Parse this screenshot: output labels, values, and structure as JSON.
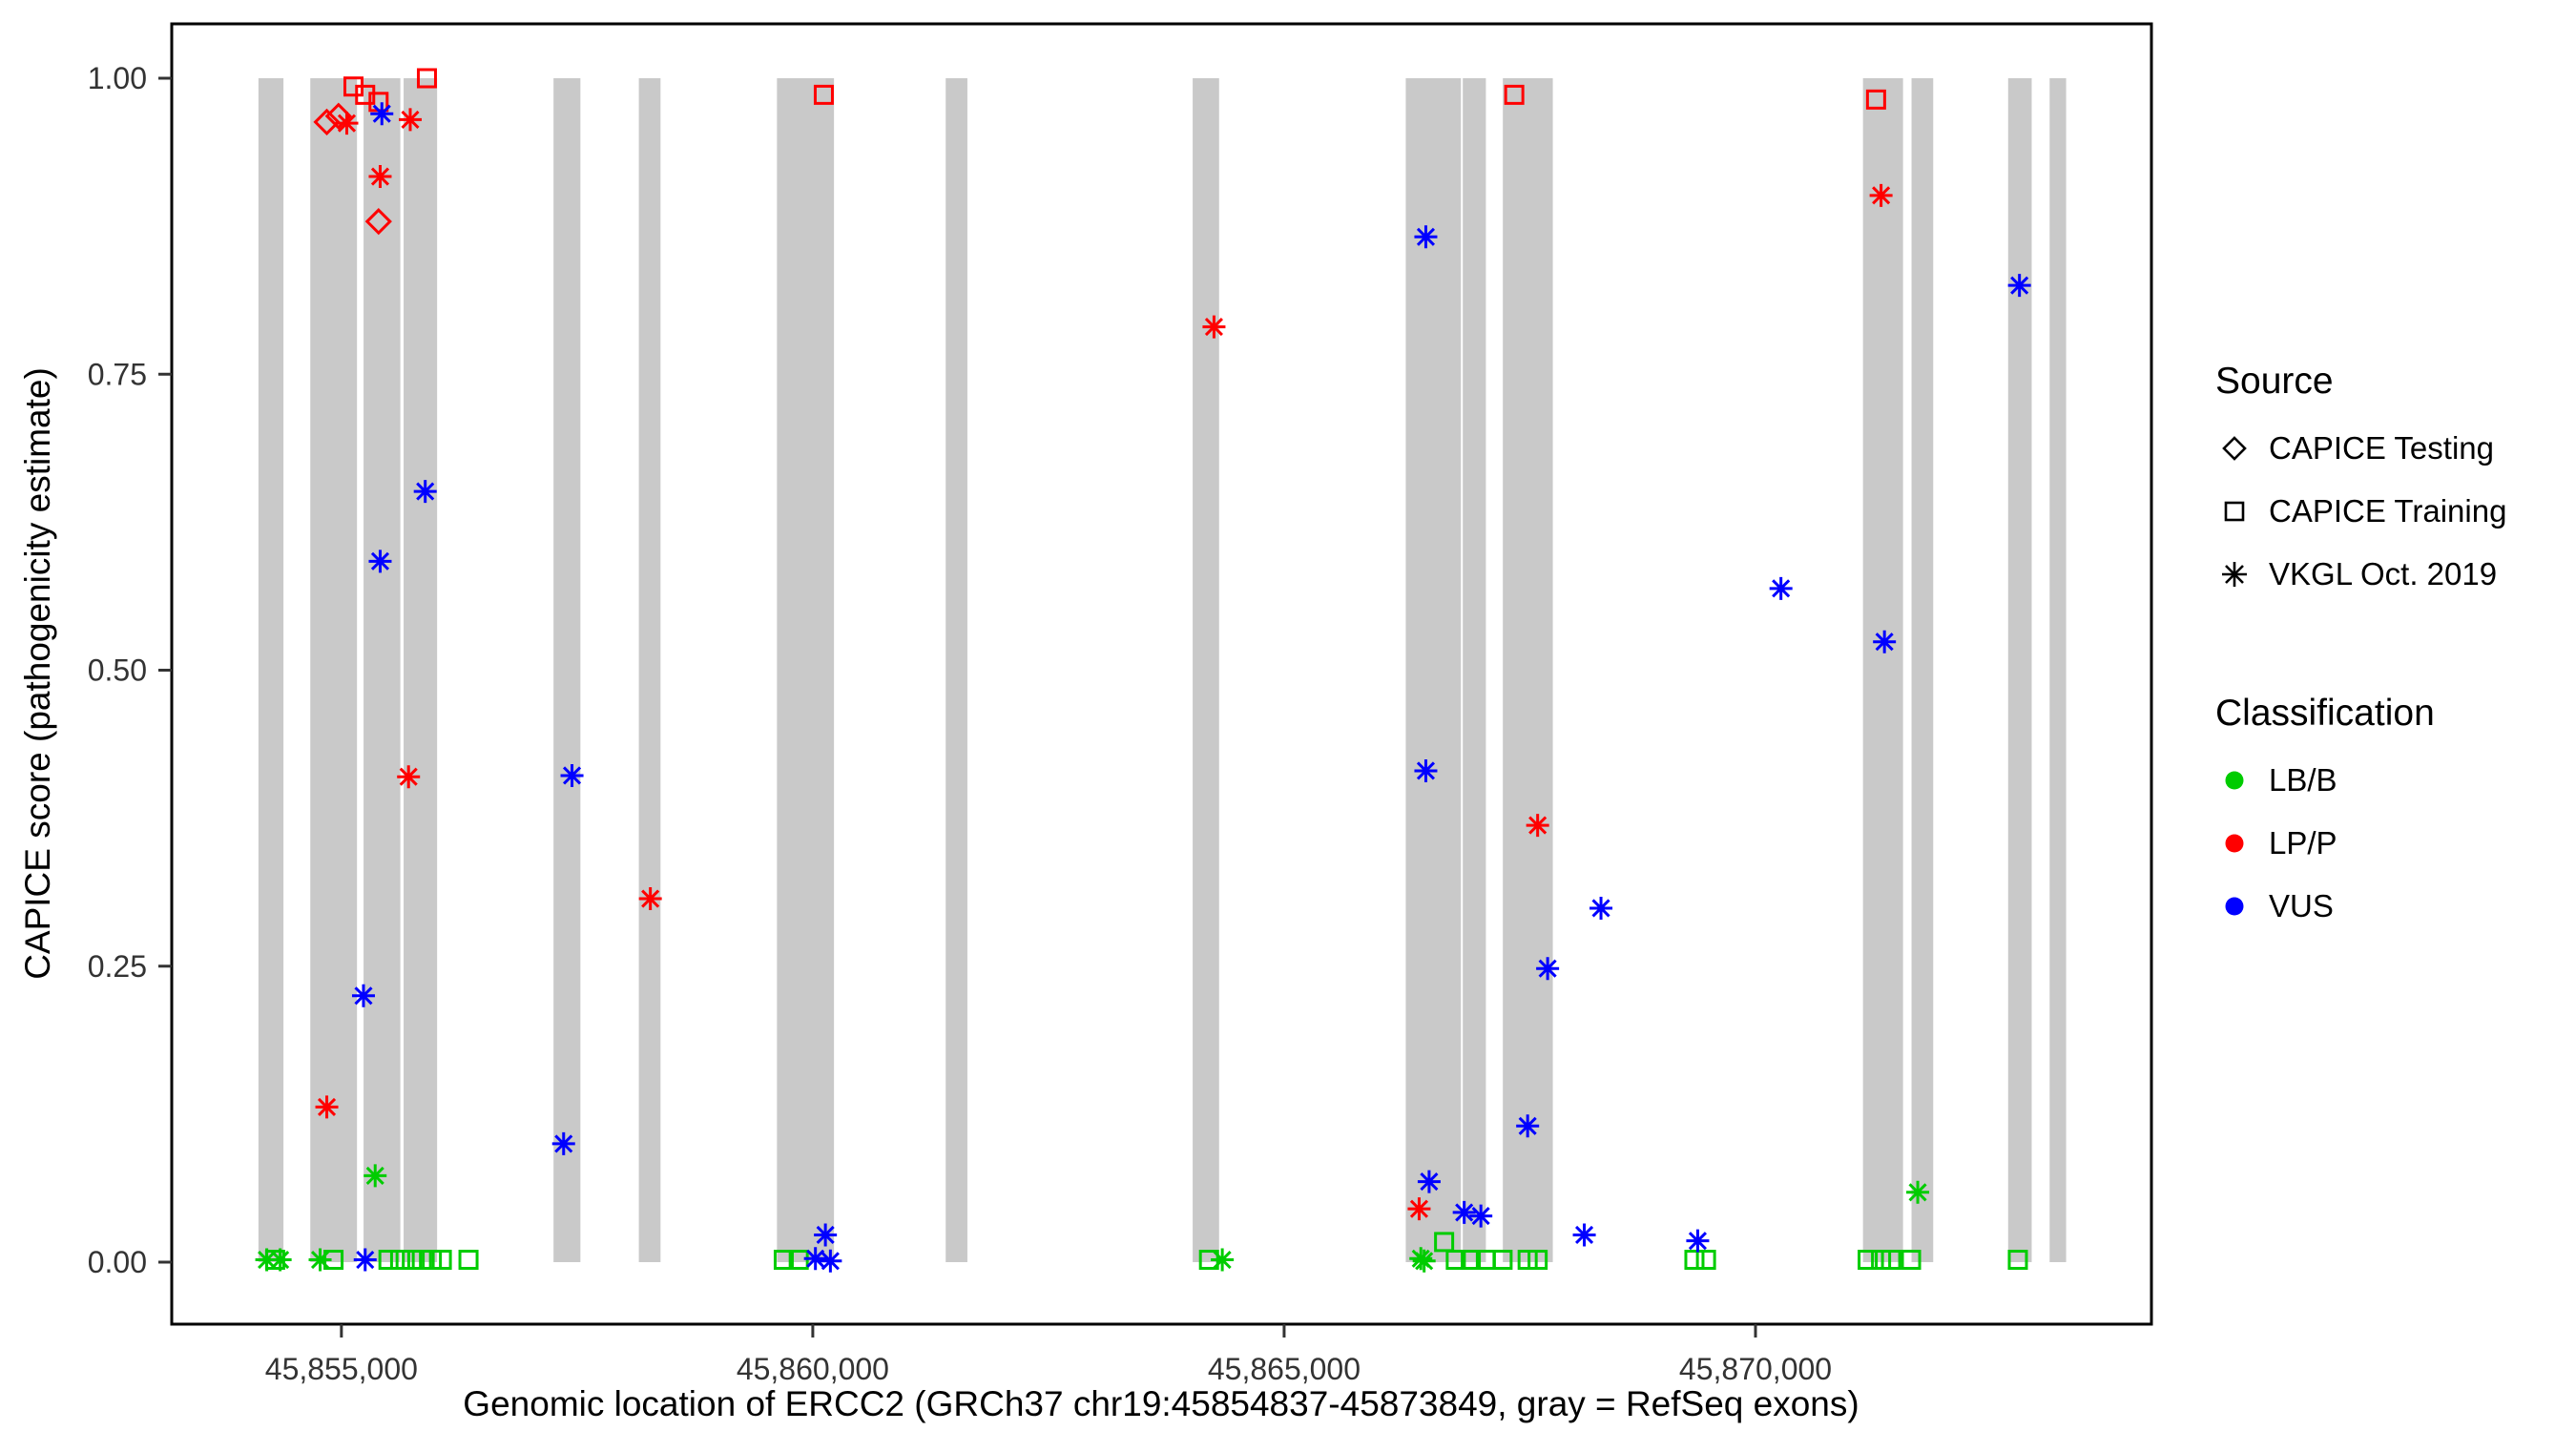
{
  "legend": {
    "source": {
      "title": "Source",
      "items": [
        {
          "key": "testing",
          "label": "CAPICE Testing"
        },
        {
          "key": "training",
          "label": "CAPICE Training"
        },
        {
          "key": "vkgl",
          "label": "VKGL Oct. 2019"
        }
      ]
    },
    "classification": {
      "title": "Classification",
      "items": [
        {
          "key": "LB/B",
          "label": "LB/B",
          "color": "#00CC00"
        },
        {
          "key": "LP/P",
          "label": "LP/P",
          "color": "#FF0000"
        },
        {
          "key": "VUS",
          "label": "VUS",
          "color": "#0000FF"
        }
      ]
    }
  },
  "chart_data": {
    "type": "scatter",
    "title": "",
    "xlabel": "Genomic location of ERCC2 (GRCh37 chr19:45854837-45873849, gray = RefSeq exons)",
    "ylabel": "CAPICE score (pathogenicity estimate)",
    "xlim": [
      45853200,
      45874200
    ],
    "ylim": [
      0,
      1
    ],
    "grid": false,
    "legend_position": "right",
    "x_ticks": [
      {
        "value": 45855000,
        "label": "45,855,000"
      },
      {
        "value": 45860000,
        "label": "45,860,000"
      },
      {
        "value": 45865000,
        "label": "45,865,000"
      },
      {
        "value": 45870000,
        "label": "45,870,000"
      }
    ],
    "y_ticks": [
      {
        "value": 0.0,
        "label": "0.00"
      },
      {
        "value": 0.25,
        "label": "0.25"
      },
      {
        "value": 0.5,
        "label": "0.50"
      },
      {
        "value": 0.75,
        "label": "0.75"
      },
      {
        "value": 1.0,
        "label": "1.00"
      }
    ],
    "exon_color": "#C9C9C9",
    "colors": {
      "LB/B": "#00CC00",
      "LP/P": "#FF0000",
      "VUS": "#0000FF"
    },
    "exons": [
      [
        45854120,
        45854385
      ],
      [
        45854670,
        45855165
      ],
      [
        45855235,
        45855625
      ],
      [
        45855660,
        45856015
      ],
      [
        45857250,
        45857535
      ],
      [
        45858155,
        45858385
      ],
      [
        45859620,
        45860225
      ],
      [
        45861410,
        45861640
      ],
      [
        45864030,
        45864310
      ],
      [
        45866290,
        45866875
      ],
      [
        45866895,
        45867140
      ],
      [
        45867320,
        45867850
      ],
      [
        45871140,
        45871565
      ],
      [
        45871655,
        45871885
      ],
      [
        45872680,
        45872930
      ],
      [
        45873120,
        45873295
      ]
    ],
    "points": [
      {
        "x": 45854845,
        "y": 0.963,
        "source": "testing",
        "cls": "LP/P"
      },
      {
        "x": 45854969,
        "y": 0.968,
        "source": "testing",
        "cls": "LP/P"
      },
      {
        "x": 45855394,
        "y": 0.879,
        "source": "testing",
        "cls": "LP/P"
      },
      {
        "x": 45855128,
        "y": 0.993,
        "source": "training",
        "cls": "LP/P"
      },
      {
        "x": 45855252,
        "y": 0.986,
        "source": "training",
        "cls": "LP/P"
      },
      {
        "x": 45855394,
        "y": 0.98,
        "source": "training",
        "cls": "LP/P"
      },
      {
        "x": 45855907,
        "y": 1.0,
        "source": "training",
        "cls": "LP/P"
      },
      {
        "x": 45860117,
        "y": 0.986,
        "source": "training",
        "cls": "LP/P"
      },
      {
        "x": 45867441,
        "y": 0.986,
        "source": "training",
        "cls": "LP/P"
      },
      {
        "x": 45871279,
        "y": 0.982,
        "source": "training",
        "cls": "LP/P"
      },
      {
        "x": 45854297,
        "y": 0.002,
        "source": "training",
        "cls": "LB/B"
      },
      {
        "x": 45854916,
        "y": 0.002,
        "source": "training",
        "cls": "LB/B"
      },
      {
        "x": 45855499,
        "y": 0.002,
        "source": "training",
        "cls": "LB/B"
      },
      {
        "x": 45855623,
        "y": 0.002,
        "source": "training",
        "cls": "LB/B"
      },
      {
        "x": 45855747,
        "y": 0.002,
        "source": "training",
        "cls": "LB/B"
      },
      {
        "x": 45855853,
        "y": 0.002,
        "source": "training",
        "cls": "LB/B"
      },
      {
        "x": 45855959,
        "y": 0.002,
        "source": "training",
        "cls": "LB/B"
      },
      {
        "x": 45856065,
        "y": 0.002,
        "source": "training",
        "cls": "LB/B"
      },
      {
        "x": 45856348,
        "y": 0.002,
        "source": "training",
        "cls": "LB/B"
      },
      {
        "x": 45859692,
        "y": 0.002,
        "source": "training",
        "cls": "LB/B"
      },
      {
        "x": 45859851,
        "y": 0.002,
        "source": "training",
        "cls": "LB/B"
      },
      {
        "x": 45864203,
        "y": 0.002,
        "source": "training",
        "cls": "LB/B"
      },
      {
        "x": 45866697,
        "y": 0.017,
        "source": "training",
        "cls": "LB/B"
      },
      {
        "x": 45866821,
        "y": 0.002,
        "source": "training",
        "cls": "LB/B"
      },
      {
        "x": 45866980,
        "y": 0.002,
        "source": "training",
        "cls": "LB/B"
      },
      {
        "x": 45867140,
        "y": 0.002,
        "source": "training",
        "cls": "LB/B"
      },
      {
        "x": 45867317,
        "y": 0.002,
        "source": "training",
        "cls": "LB/B"
      },
      {
        "x": 45867583,
        "y": 0.002,
        "source": "training",
        "cls": "LB/B"
      },
      {
        "x": 45867689,
        "y": 0.002,
        "source": "training",
        "cls": "LB/B"
      },
      {
        "x": 45869352,
        "y": 0.002,
        "source": "training",
        "cls": "LB/B"
      },
      {
        "x": 45869475,
        "y": 0.002,
        "source": "training",
        "cls": "LB/B"
      },
      {
        "x": 45871190,
        "y": 0.002,
        "source": "training",
        "cls": "LB/B"
      },
      {
        "x": 45871332,
        "y": 0.002,
        "source": "training",
        "cls": "LB/B"
      },
      {
        "x": 45871438,
        "y": 0.002,
        "source": "training",
        "cls": "LB/B"
      },
      {
        "x": 45871650,
        "y": 0.002,
        "source": "training",
        "cls": "LB/B"
      },
      {
        "x": 45872783,
        "y": 0.002,
        "source": "training",
        "cls": "LB/B"
      },
      {
        "x": 45855057,
        "y": 0.962,
        "source": "vkgl",
        "cls": "LP/P"
      },
      {
        "x": 45855730,
        "y": 0.965,
        "source": "vkgl",
        "cls": "LP/P"
      },
      {
        "x": 45855411,
        "y": 0.917,
        "source": "vkgl",
        "cls": "LP/P"
      },
      {
        "x": 45871332,
        "y": 0.901,
        "source": "vkgl",
        "cls": "LP/P"
      },
      {
        "x": 45864256,
        "y": 0.79,
        "source": "vkgl",
        "cls": "LP/P"
      },
      {
        "x": 45855712,
        "y": 0.41,
        "source": "vkgl",
        "cls": "LP/P"
      },
      {
        "x": 45867689,
        "y": 0.369,
        "source": "vkgl",
        "cls": "LP/P"
      },
      {
        "x": 45858277,
        "y": 0.307,
        "source": "vkgl",
        "cls": "LP/P"
      },
      {
        "x": 45854845,
        "y": 0.131,
        "source": "vkgl",
        "cls": "LP/P"
      },
      {
        "x": 45866432,
        "y": 0.045,
        "source": "vkgl",
        "cls": "LP/P"
      },
      {
        "x": 45855429,
        "y": 0.97,
        "source": "vkgl",
        "cls": "VUS"
      },
      {
        "x": 45866503,
        "y": 0.866,
        "source": "vkgl",
        "cls": "VUS"
      },
      {
        "x": 45872800,
        "y": 0.825,
        "source": "vkgl",
        "cls": "VUS"
      },
      {
        "x": 45855889,
        "y": 0.651,
        "source": "vkgl",
        "cls": "VUS"
      },
      {
        "x": 45855411,
        "y": 0.592,
        "source": "vkgl",
        "cls": "VUS"
      },
      {
        "x": 45870270,
        "y": 0.569,
        "source": "vkgl",
        "cls": "VUS"
      },
      {
        "x": 45871368,
        "y": 0.524,
        "source": "vkgl",
        "cls": "VUS"
      },
      {
        "x": 45866503,
        "y": 0.415,
        "source": "vkgl",
        "cls": "VUS"
      },
      {
        "x": 45857446,
        "y": 0.411,
        "source": "vkgl",
        "cls": "VUS"
      },
      {
        "x": 45868361,
        "y": 0.299,
        "source": "vkgl",
        "cls": "VUS"
      },
      {
        "x": 45867795,
        "y": 0.248,
        "source": "vkgl",
        "cls": "VUS"
      },
      {
        "x": 45855234,
        "y": 0.225,
        "source": "vkgl",
        "cls": "VUS"
      },
      {
        "x": 45867583,
        "y": 0.115,
        "source": "vkgl",
        "cls": "VUS"
      },
      {
        "x": 45857357,
        "y": 0.1,
        "source": "vkgl",
        "cls": "VUS"
      },
      {
        "x": 45866538,
        "y": 0.068,
        "source": "vkgl",
        "cls": "VUS"
      },
      {
        "x": 45866910,
        "y": 0.042,
        "source": "vkgl",
        "cls": "VUS"
      },
      {
        "x": 45867087,
        "y": 0.039,
        "source": "vkgl",
        "cls": "VUS"
      },
      {
        "x": 45868184,
        "y": 0.023,
        "source": "vkgl",
        "cls": "VUS"
      },
      {
        "x": 45860134,
        "y": 0.023,
        "source": "vkgl",
        "cls": "VUS"
      },
      {
        "x": 45869387,
        "y": 0.018,
        "source": "vkgl",
        "cls": "VUS"
      },
      {
        "x": 45855252,
        "y": 0.002,
        "source": "vkgl",
        "cls": "VUS"
      },
      {
        "x": 45860028,
        "y": 0.003,
        "source": "vkgl",
        "cls": "VUS"
      },
      {
        "x": 45860187,
        "y": 0.001,
        "source": "vkgl",
        "cls": "VUS"
      },
      {
        "x": 45855358,
        "y": 0.073,
        "source": "vkgl",
        "cls": "LB/B"
      },
      {
        "x": 45871721,
        "y": 0.059,
        "source": "vkgl",
        "cls": "LB/B"
      },
      {
        "x": 45854208,
        "y": 0.002,
        "source": "vkgl",
        "cls": "LB/B"
      },
      {
        "x": 45854350,
        "y": 0.002,
        "source": "vkgl",
        "cls": "LB/B"
      },
      {
        "x": 45854774,
        "y": 0.002,
        "source": "vkgl",
        "cls": "LB/B"
      },
      {
        "x": 45864344,
        "y": 0.002,
        "source": "vkgl",
        "cls": "LB/B"
      },
      {
        "x": 45866450,
        "y": 0.003,
        "source": "vkgl",
        "cls": "LB/B"
      },
      {
        "x": 45866485,
        "y": 0.001,
        "source": "vkgl",
        "cls": "LB/B"
      }
    ]
  }
}
